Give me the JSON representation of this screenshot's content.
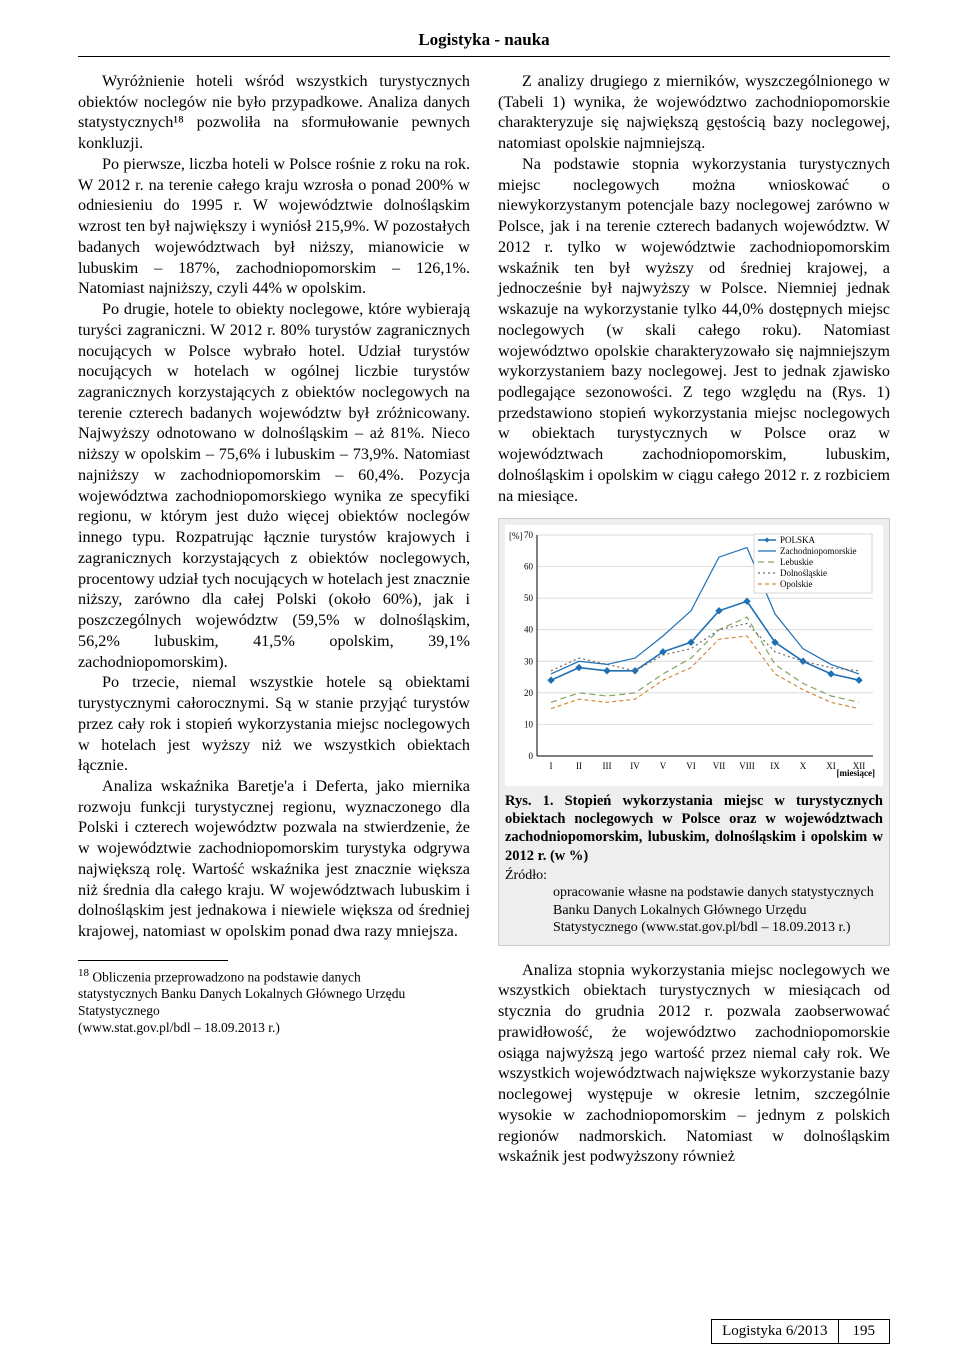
{
  "header": "Logistyka - nauka",
  "left_paragraphs": [
    "Wyróżnienie hoteli wśród wszystkich turystycznych obiektów noclegów nie było przypadkowe. Analiza danych statystycznych¹⁸ pozwoliła na sformułowanie pewnych konkluzji.",
    "Po pierwsze, liczba hoteli w Polsce rośnie z roku na rok. W 2012 r. na terenie całego kraju wzrosła o ponad 200% w odniesieniu do 1995 r. W województwie dolnośląskim wzrost ten był największy i wyniósł 215,9%. W pozostałych badanych województwach był niższy, mianowicie w lubuskim – 187%, zachodniopomorskim – 126,1%. Natomiast najniższy, czyli 44% w opolskim.",
    "Po drugie, hotele to obiekty noclegowe, które wybierają turyści zagraniczni. W 2012 r. 80% turystów zagranicznych nocujących w Polsce wybrało hotel. Udział turystów nocujących w hotelach w ogólnej liczbie turystów zagranicznych korzystających z obiektów noclegowych na terenie czterech badanych województw był zróżnicowany. Najwyższy odnotowano w dolnośląskim – aż 81%. Nieco niższy w opolskim – 75,6% i lubuskim – 73,9%. Natomiast najniższy w zachodniopomorskim – 60,4%. Pozycja województwa zachodniopomorskiego wynika ze specyfiki regionu, w którym jest dużo więcej obiektów noclegów innego typu. Rozpatrując łącznie turystów krajowych i zagranicznych korzystających z obiektów noclegowych, procentowy udział tych nocujących w hotelach jest znacznie niższy, zarówno dla całej Polski (około 60%), jak i poszczególnych województw (59,5% w dolnośląskim, 56,2% lubuskim, 41,5% opolskim, 39,1% zachodniopomorskim).",
    "Po trzecie, niemal wszystkie hotele są obiektami turystycznymi całorocznymi. Są w stanie przyjąć turystów przez cały rok i stopień wykorzystania miejsc noclegowych w hotelach jest wyższy niż we wszystkich obiektach łącznie.",
    "Analiza wskaźnika Baretje'a i Deferta, jako miernika rozwoju funkcji turystycznej regionu, wyznaczonego dla Polski i czterech województw pozwala na stwierdzenie, że w województwie zachodniopomorskim turystyka odgrywa największą rolę. Wartość wskaźnika jest znacznie większa niż średnia dla całego kraju. W województwach lubuskim i dolnośląskim jest jednakowa i niewiele większa od średniej krajowej, natomiast w opolskim ponad dwa razy mniejsza."
  ],
  "footnote": {
    "marker": "18",
    "text_lines": [
      "Obliczenia przeprowadzono na podstawie danych statystycznych Banku Danych Lokalnych Głównego Urzędu Statystycznego",
      "(www.stat.gov.pl/bdl – 18.09.2013 r.)"
    ]
  },
  "right_top_paragraphs": [
    "Z analizy drugiego z mierników, wyszczególnionego w (Tabeli 1) wynika, że województwo zachodniopomorskie charakteryzuje się największą gęstością bazy noclegowej, natomiast opolskie najmniejszą.",
    "Na podstawie stopnia wykorzystania turystycznych miejsc noclegowych można wnioskować o niewykorzystanym potencjale bazy noclegowej zarówno w Polsce, jak i na terenie czterech badanych województw. W 2012 r. tylko w województwie zachodniopomorskim wskaźnik ten był wyższy od średniej krajowej, a jednocześnie był najwyższy w Polsce. Niemniej jednak wskazuje na wykorzystanie tylko 44,0% dostępnych miejsc noclegowych (w skali całego roku). Natomiast województwo opolskie charakteryzowało się najmniejszym wykorzystaniem bazy noclegowej. Jest to jednak zjawisko podlegające sezonowości. Z tego względu na (Rys. 1) przedstawiono stopień wykorzystania miejsc noclegowych w obiektach turystycznych w Polsce oraz w województwach zachodniopomorskim, lubuskim, dolnośląskim i opolskim w ciągu całego 2012 r. z rozbiciem na miesiące."
  ],
  "right_after_chart": [
    "Analiza stopnia wykorzystania miejsc noclegowych we wszystkich obiektach turystycznych w miesiącach od stycznia do grudnia 2012 r. pozwala zaobserwować prawidłowość, że województwo zachodniopomorskie osiąga najwyższą jego wartość przez niemal cały rok. We wszystkich województwach największe wykorzystanie bazy noclegowej występuje w okresie letnim, szczególnie wysokie w zachodniopomorskim – jednym z polskich regionów nadmorskich. Natomiast w dolnośląskim wskaźnik jest podwyższony również"
  ],
  "chart": {
    "type": "line",
    "y_axis_label": "[%]",
    "x_axis_label": "[miesiące]",
    "categories": [
      "I",
      "II",
      "III",
      "IV",
      "V",
      "VI",
      "VII",
      "VIII",
      "IX",
      "X",
      "XI",
      "XII"
    ],
    "ylim": [
      0,
      70
    ],
    "ytick_step": 10,
    "background_color": "#ffffff",
    "grid_color": "#cfcfcf",
    "axis_color": "#000000",
    "tick_font_size": 9,
    "series": [
      {
        "name": "POLSKA",
        "legend": "POLSKA",
        "color": "#1f6fb4",
        "dash": "",
        "width": 1.6,
        "marker": "diamond",
        "values": [
          24,
          28,
          27,
          27,
          33,
          36,
          46,
          49,
          36,
          30,
          26,
          24
        ]
      },
      {
        "name": "Zachodniopomorskie",
        "legend": "Zachodniopomorskie",
        "color": "#1f6fb4",
        "dash": "",
        "width": 1.2,
        "marker": "none",
        "values": [
          26,
          30,
          29,
          31,
          38,
          46,
          63,
          66,
          45,
          34,
          29,
          26
        ]
      },
      {
        "name": "Lebuskie",
        "legend": "Lebuskie",
        "color": "#7fa65a",
        "dash": "6,4",
        "width": 1.2,
        "marker": "none",
        "values": [
          17,
          20,
          19,
          20,
          26,
          31,
          40,
          44,
          29,
          23,
          19,
          17
        ]
      },
      {
        "name": "Dolnoslaskie",
        "legend": "Dolnośląskie",
        "color": "#6a6a6a",
        "dash": "2,3",
        "width": 1.2,
        "marker": "none",
        "values": [
          27,
          31,
          29,
          27,
          32,
          34,
          40,
          42,
          33,
          30,
          28,
          27
        ]
      },
      {
        "name": "Opolskie",
        "legend": "Opolskie",
        "color": "#d08c3a",
        "dash": "4,3",
        "width": 1.2,
        "marker": "none",
        "values": [
          15,
          18,
          17,
          18,
          24,
          28,
          37,
          38,
          26,
          21,
          17,
          15
        ]
      }
    ],
    "caption_bold": "Rys. 1. Stopień wykorzystania miejsc w turystycznych obiektach noclegowych w Polsce oraz w województwach zachodniopomorskim, lubuskim, dolnośląskim i opolskim w 2012 r. (w %)",
    "source_head": "Źródło: ",
    "source_body": "opracowanie własne na podstawie danych statystycznych Banku Danych Lokalnych Głównego Urzędu Statystycznego (www.stat.gov.pl/bdl – 18.09.2013 r.)"
  },
  "footer": {
    "issue": "Logistyka 6/2013",
    "page": "195"
  }
}
